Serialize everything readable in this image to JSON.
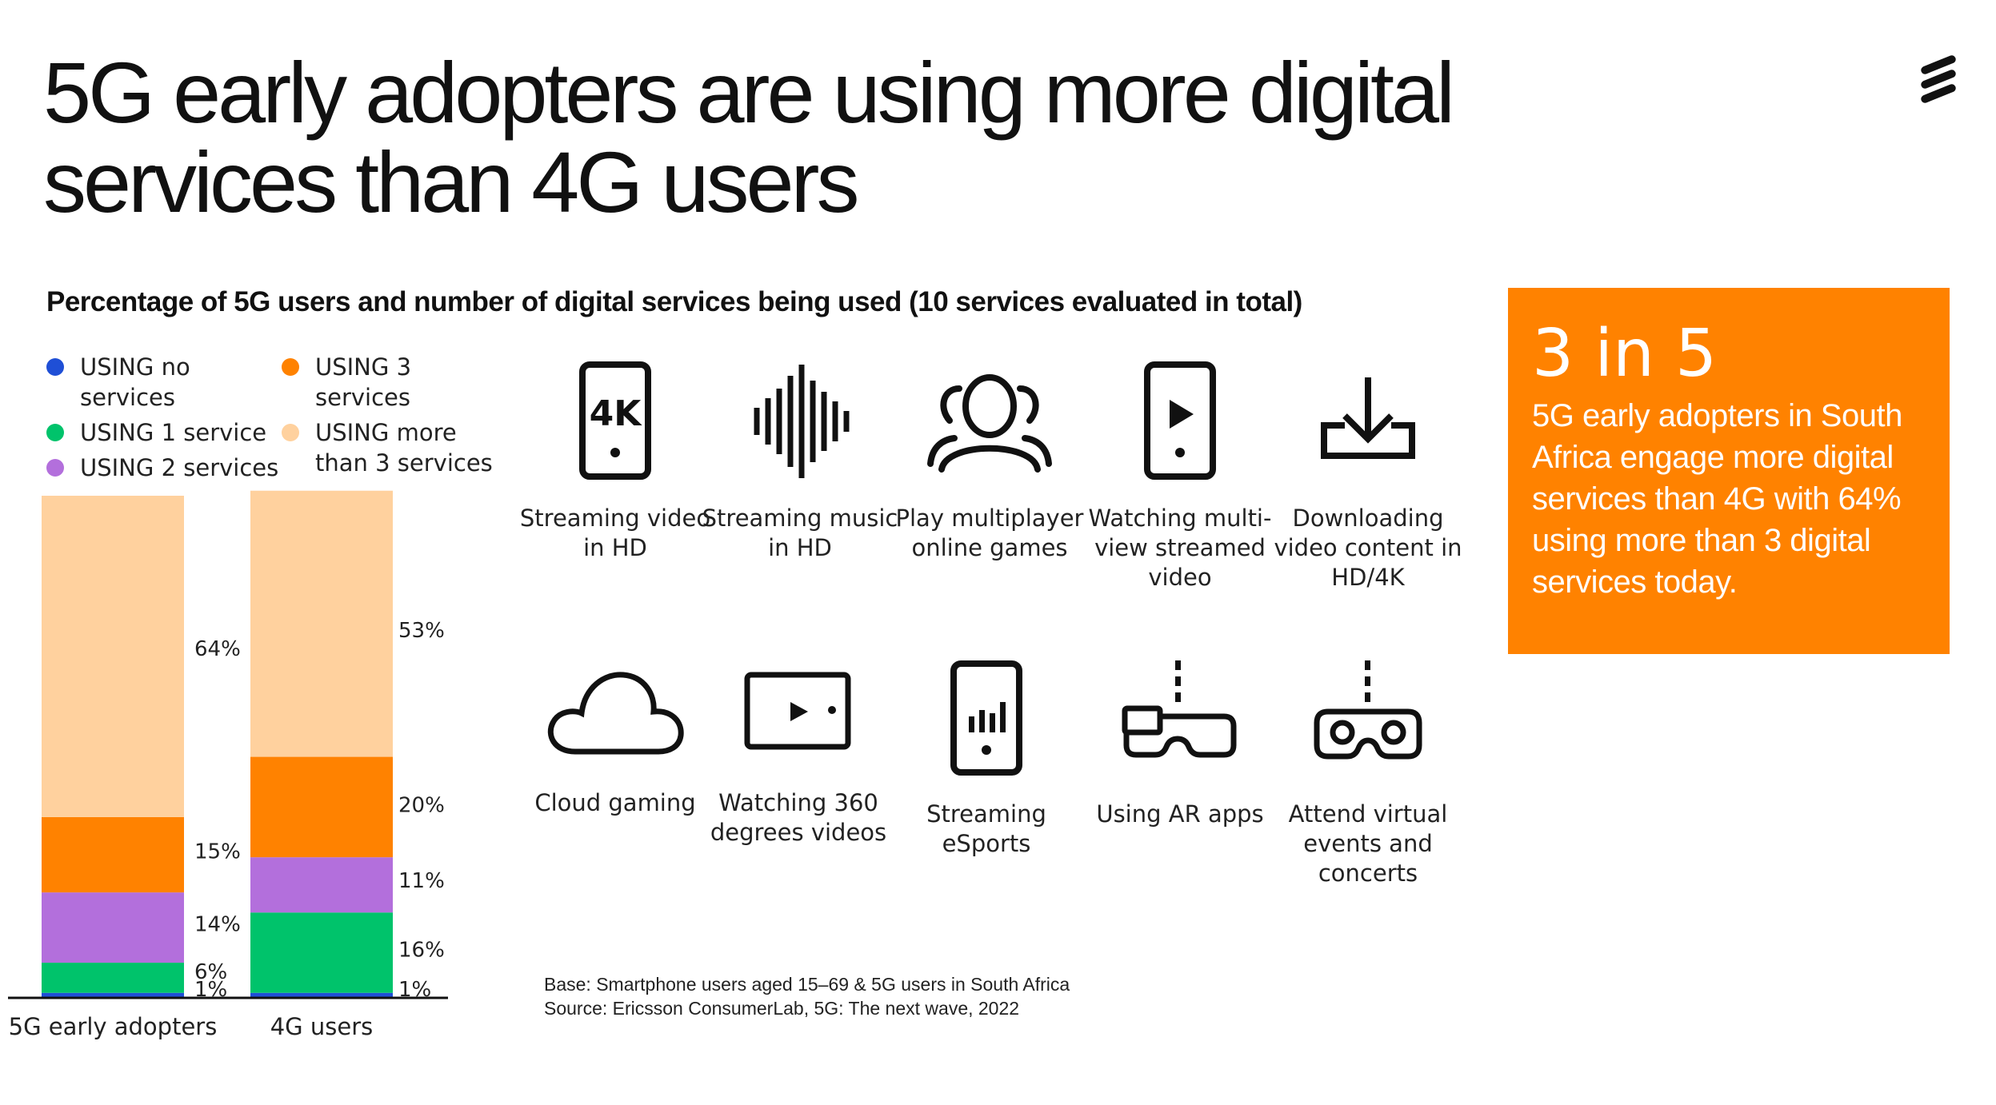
{
  "title_line1": "5G early adopters are using more digital",
  "title_line2": "services than 4G users",
  "subtitle": "Percentage of 5G users and number of digital services being used (10 services evaluated in total)",
  "legend": [
    {
      "label": "USING no services",
      "color": "#1f4fd6"
    },
    {
      "label": "USING 1 service",
      "color": "#00c36b"
    },
    {
      "label": "USING 2 services",
      "color": "#b36fdc"
    },
    {
      "label": "USING 3 services",
      "color": "#ff8200"
    },
    {
      "label": "USING more than 3 services",
      "color": "#ffd19e"
    }
  ],
  "chart_data": {
    "type": "bar",
    "stacked": true,
    "categories": [
      "5G early adopters",
      "4G users"
    ],
    "series": [
      {
        "name": "USING no services",
        "color": "#1f4fd6",
        "values": [
          1,
          1
        ]
      },
      {
        "name": "USING 1 service",
        "color": "#00c36b",
        "values": [
          6,
          16
        ]
      },
      {
        "name": "USING 2 services",
        "color": "#b36fdc",
        "values": [
          14,
          11
        ]
      },
      {
        "name": "USING 3 services",
        "color": "#ff8200",
        "values": [
          15,
          20
        ]
      },
      {
        "name": "USING more than 3 services",
        "color": "#ffd19e",
        "values": [
          64,
          53
        ]
      }
    ],
    "unit": "%",
    "ylim": [
      0,
      100
    ]
  },
  "services": [
    {
      "label": "Streaming video in HD",
      "icon": "phone-4k-icon"
    },
    {
      "label": "Streaming music in HD",
      "icon": "soundwave-icon"
    },
    {
      "label": "Play multiplayer online games",
      "icon": "people-icon"
    },
    {
      "label": "Watching multi-view streamed video",
      "icon": "phone-play-icon"
    },
    {
      "label": "Downloading video content in HD/4K",
      "icon": "download-icon"
    },
    {
      "label": "Cloud gaming",
      "icon": "cloud-icon"
    },
    {
      "label": "Watching 360 degrees videos",
      "icon": "screen-play-icon"
    },
    {
      "label": "Streaming eSports",
      "icon": "phone-bars-icon"
    },
    {
      "label": "Using AR apps",
      "icon": "ar-glasses-icon"
    },
    {
      "label": "Attend virtual events and concerts",
      "icon": "vr-headset-icon"
    }
  ],
  "icon_text": "4K",
  "footnote_base": "Base: Smartphone users aged 15–69 & 5G users in South Africa",
  "footnote_source": "Source: Ericsson ConsumerLab, 5G: The next wave, 2022",
  "callout_head": "3 in 5",
  "callout_body": "5G early adopters in South Africa engage more digital services than 4G with 64% using more than 3 digital services today.",
  "colors": {
    "accent": "#ff8200"
  }
}
